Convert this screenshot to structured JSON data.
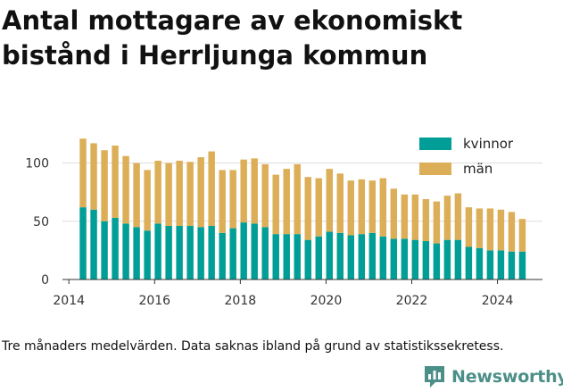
{
  "title": "Antal mottagare av ekonomiskt bistånd i Herrljunga kommun",
  "footnote": "Tre månaders medelvärden. Data saknas ibland på grund av statistikssekretess.",
  "brand": {
    "name": "Newsworthy",
    "icon": "newsworthy-logo-icon",
    "color": "#4c8f89"
  },
  "chart_data": {
    "type": "bar",
    "stacked": true,
    "x_start_year": 2014.33,
    "x_step_years": 0.25,
    "categories": [
      "2014 Q2",
      "2014 Q3",
      "2014 Q4",
      "2015 Q1",
      "2015 Q2",
      "2015 Q3",
      "2015 Q4",
      "2016 Q1",
      "2016 Q2",
      "2016 Q3",
      "2016 Q4",
      "2017 Q1",
      "2017 Q2",
      "2017 Q3",
      "2017 Q4",
      "2018 Q1",
      "2018 Q2",
      "2018 Q3",
      "2018 Q4",
      "2019 Q1",
      "2019 Q2",
      "2019 Q3",
      "2019 Q4",
      "2020 Q1",
      "2020 Q2",
      "2020 Q3",
      "2020 Q4",
      "2021 Q1",
      "2021 Q2",
      "2021 Q3",
      "2021 Q4",
      "2022 Q1",
      "2022 Q2",
      "2022 Q3",
      "2022 Q4",
      "2023 Q1",
      "2023 Q2",
      "2023 Q3",
      "2023 Q4",
      "2024 Q1",
      "2024 Q2",
      "2024 Q3"
    ],
    "series": [
      {
        "name": "kvinnor",
        "color": "#009e96",
        "values": [
          62,
          60,
          50,
          53,
          48,
          45,
          42,
          48,
          46,
          46,
          46,
          45,
          46,
          40,
          44,
          49,
          48,
          45,
          39,
          39,
          39,
          34,
          37,
          41,
          40,
          38,
          39,
          40,
          37,
          35,
          35,
          34,
          33,
          31,
          34,
          34,
          28,
          27,
          25,
          25,
          24,
          24
        ]
      },
      {
        "name": "män",
        "color": "#dcae58",
        "values": [
          59,
          57,
          61,
          62,
          58,
          55,
          52,
          54,
          54,
          56,
          55,
          60,
          64,
          54,
          50,
          54,
          56,
          54,
          51,
          56,
          60,
          54,
          50,
          54,
          51,
          47,
          47,
          45,
          50,
          43,
          38,
          39,
          36,
          36,
          38,
          40,
          34,
          34,
          36,
          35,
          34,
          28
        ]
      }
    ],
    "y_ticks": [
      0,
      50,
      100
    ],
    "x_ticks": [
      "2014",
      "2016",
      "2018",
      "2020",
      "2022",
      "2024"
    ],
    "ylim": [
      0,
      125
    ],
    "xlim": [
      2013.85,
      2025.05
    ],
    "grid": true,
    "legend_position": "top-right"
  }
}
